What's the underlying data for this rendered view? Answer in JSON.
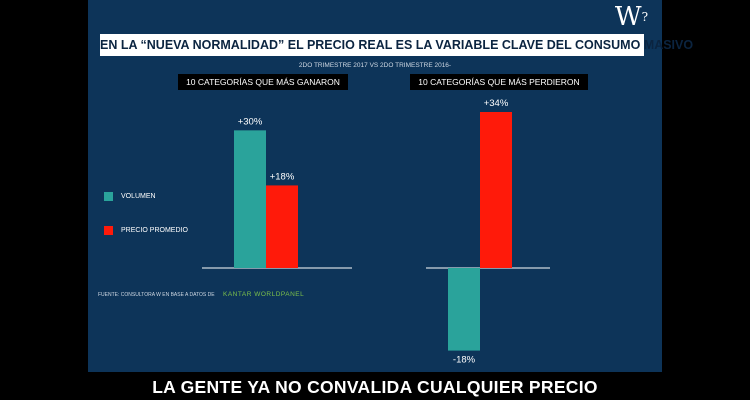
{
  "logo": {
    "text": "W",
    "superscript": "?"
  },
  "title": "EN LA “NUEVA NORMALIDAD” EL PRECIO REAL ES LA VARIABLE CLAVE DEL CONSUMO MASIVO",
  "subtitle": "2DO TRIMESTRE 2017 VS 2DO TRIMESTRE 2016-",
  "legend": [
    {
      "label": "VOLUMEN",
      "color": "#2aa39b"
    },
    {
      "label": "PRECIO PROMEDIO",
      "color": "#ff1a0a"
    }
  ],
  "source": {
    "text": "FUENTE: CONSULTORA W EN BASE A DATOS DE",
    "brand": "KANTAR W⁠ORLDPANEL"
  },
  "caption": "LA GENTE YA NO CONVALIDA CUALQUIER PRECIO",
  "chart_data": [
    {
      "type": "bar",
      "title": "10 CATEGORÍAS QUE MÁS GANARON",
      "series": [
        {
          "name": "VOLUMEN",
          "color": "#2aa39b",
          "value": 30,
          "label": "+30%"
        },
        {
          "name": "PRECIO PROMEDIO",
          "color": "#ff1a0a",
          "value": 18,
          "label": "+18%"
        }
      ]
    },
    {
      "type": "bar",
      "title": "10 CATEGORÍAS QUE MÁS PERDIERON",
      "series": [
        {
          "name": "VOLUMEN",
          "color": "#2aa39b",
          "value": -18,
          "label": "-18%"
        },
        {
          "name": "PRECIO PROMEDIO",
          "color": "#ff1a0a",
          "value": 34,
          "label": "+34%"
        }
      ]
    }
  ]
}
